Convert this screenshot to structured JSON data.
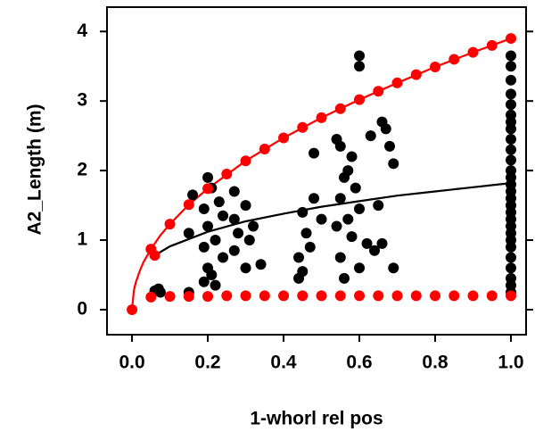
{
  "chart_data": {
    "type": "scatter",
    "xlabel": "1-whorl rel pos",
    "ylabel": "A2_Length (m)",
    "xlim": [
      -0.066,
      1.04
    ],
    "ylim": [
      -0.36,
      4.35
    ],
    "xticks": [
      {
        "value": 0,
        "label": "0.0"
      },
      0.2,
      0.4,
      0.6,
      0.8,
      {
        "value": 1,
        "label": "1.0"
      }
    ],
    "yticks": [
      0,
      1,
      2,
      3,
      4
    ],
    "series": [
      {
        "mode": "line",
        "color": "#ff0000",
        "x": [
          0,
          0.005,
          0.01,
          0.02,
          0.03,
          0.05,
          0.075,
          0.1,
          0.15,
          0.2,
          0.3,
          0.4,
          0.5,
          0.6,
          0.7,
          0.8,
          0.9,
          1.0
        ],
        "values": [
          0,
          0.28,
          0.39,
          0.55,
          0.68,
          0.87,
          1.07,
          1.23,
          1.51,
          1.74,
          2.14,
          2.47,
          2.76,
          3.02,
          3.26,
          3.49,
          3.7,
          3.9
        ]
      },
      {
        "mode": "line",
        "color": "#000000",
        "x": [
          0.06,
          0.1,
          0.2,
          0.3,
          0.4,
          0.5,
          0.6,
          0.7,
          0.8,
          0.9,
          1.0
        ],
        "values": [
          0.78,
          0.91,
          1.12,
          1.27,
          1.38,
          1.48,
          1.56,
          1.64,
          1.7,
          1.76,
          1.82
        ]
      },
      {
        "mode": "markers",
        "color": "#000000",
        "x": [
          0.07,
          0.075,
          0.06,
          0.2,
          0.21,
          0.16,
          0.23,
          0.19,
          0.24,
          0.2,
          0.15,
          0.22,
          0.19,
          0.24,
          0.2,
          0.21,
          0.19,
          0.22,
          0.15,
          0.27,
          0.3,
          0.27,
          0.32,
          0.28,
          0.31,
          0.27,
          0.34,
          0.3,
          0.48,
          0.48,
          0.45,
          0.5,
          0.46,
          0.47,
          0.44,
          0.45,
          0.44,
          0.6,
          0.6,
          0.54,
          0.55,
          0.58,
          0.57,
          0.56,
          0.59,
          0.55,
          0.6,
          0.57,
          0.54,
          0.58,
          0.62,
          0.55,
          0.6,
          0.56,
          0.66,
          0.67,
          0.63,
          0.68,
          0.69,
          0.65,
          0.66,
          0.64,
          0.69,
          1,
          1,
          1,
          1,
          1,
          1,
          1,
          1,
          1,
          1,
          1,
          1,
          1,
          1,
          1,
          1,
          1,
          1,
          1,
          1,
          1,
          1,
          1,
          1,
          1,
          1,
          1,
          1
        ],
        "values": [
          0.3,
          0.25,
          0.27,
          1.9,
          1.75,
          1.65,
          1.55,
          1.45,
          1.35,
          1.2,
          1.1,
          1.0,
          0.9,
          0.75,
          0.6,
          0.5,
          0.4,
          0.35,
          0.25,
          1.7,
          1.5,
          1.3,
          1.2,
          1.1,
          1.0,
          0.85,
          0.65,
          0.6,
          2.25,
          1.6,
          1.4,
          1.3,
          1.1,
          0.9,
          0.75,
          0.55,
          0.45,
          3.65,
          3.5,
          2.45,
          2.35,
          2.2,
          2.0,
          1.9,
          1.75,
          1.6,
          1.45,
          1.3,
          1.2,
          1.05,
          0.95,
          0.75,
          0.6,
          0.45,
          2.7,
          2.6,
          2.5,
          2.35,
          2.1,
          1.5,
          0.95,
          0.85,
          0.6,
          3.65,
          3.5,
          3.3,
          3.1,
          2.95,
          2.8,
          2.7,
          2.6,
          2.45,
          2.3,
          2.15,
          2.0,
          1.9,
          1.8,
          1.7,
          1.6,
          1.5,
          1.4,
          1.3,
          1.2,
          1.1,
          1.0,
          0.9,
          0.75,
          0.6,
          0.45,
          0.35,
          0.25
        ]
      },
      {
        "mode": "markers",
        "color": "#ff0000",
        "x": [
          0,
          0.05,
          0.06,
          0.1,
          0.15,
          0.2,
          0.25,
          0.3,
          0.35,
          0.4,
          0.45,
          0.5,
          0.55,
          0.6,
          0.65,
          0.7,
          0.75,
          0.8,
          0.85,
          0.9,
          0.95,
          1.0,
          0.05,
          0.1,
          0.15,
          0.2,
          0.25,
          0.3,
          0.35,
          0.4,
          0.45,
          0.5,
          0.55,
          0.6,
          0.65,
          0.7,
          0.75,
          0.8,
          0.85,
          0.9,
          0.95,
          1.0
        ],
        "values": [
          0,
          0.87,
          0.78,
          1.23,
          1.51,
          1.74,
          1.95,
          2.14,
          2.31,
          2.47,
          2.62,
          2.76,
          2.89,
          3.02,
          3.14,
          3.26,
          3.38,
          3.49,
          3.6,
          3.7,
          3.8,
          3.9,
          0.18,
          0.19,
          0.19,
          0.19,
          0.2,
          0.2,
          0.2,
          0.2,
          0.2,
          0.2,
          0.2,
          0.2,
          0.2,
          0.2,
          0.2,
          0.2,
          0.2,
          0.2,
          0.2,
          0.2
        ]
      }
    ]
  }
}
